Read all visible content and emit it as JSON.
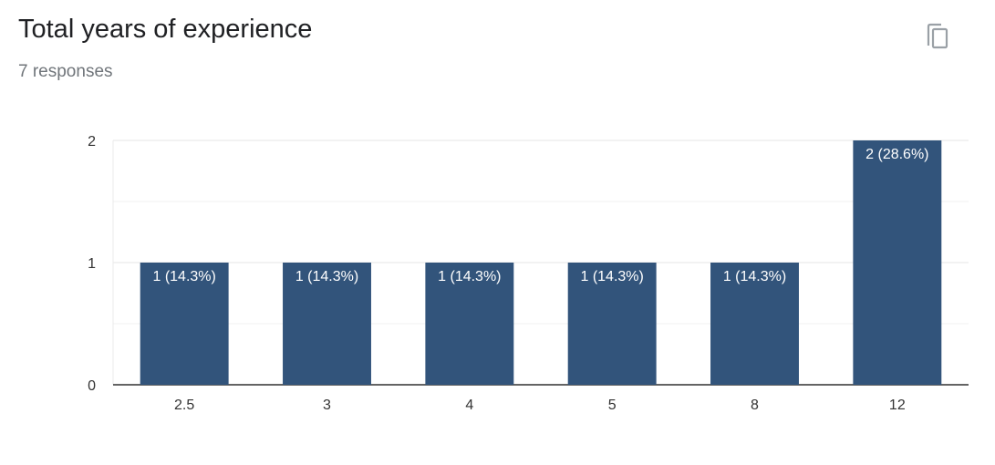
{
  "header": {
    "title": "Total years of experience",
    "responses": "7 responses"
  },
  "icons": {
    "copy": "copy-icon"
  },
  "colors": {
    "bar": "#32547b",
    "grid": "#ebebeb",
    "axis": "#333333"
  },
  "chart_data": {
    "type": "bar",
    "categories": [
      "2.5",
      "3",
      "4",
      "5",
      "8",
      "12"
    ],
    "values": [
      1,
      1,
      1,
      1,
      1,
      2
    ],
    "data_labels": [
      "1 (14.3%)",
      "1 (14.3%)",
      "1 (14.3%)",
      "1 (14.3%)",
      "1 (14.3%)",
      "2 (28.6%)"
    ],
    "yticks": [
      0,
      1,
      2
    ],
    "ylim": [
      0,
      2
    ],
    "grid": true
  }
}
